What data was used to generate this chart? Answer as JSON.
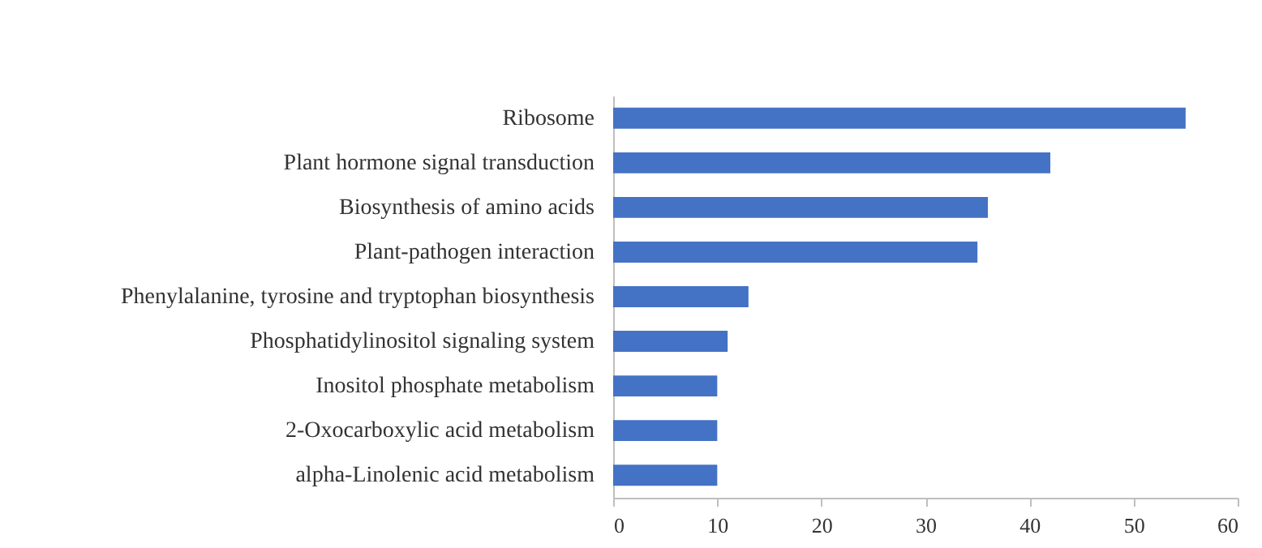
{
  "chart_data": {
    "type": "bar",
    "orientation": "horizontal",
    "categories": [
      "Ribosome",
      "Plant hormone signal transduction",
      "Biosynthesis of amino acids",
      "Plant-pathogen interaction",
      "Phenylalanine, tyrosine and tryptophan biosynthesis",
      "Phosphatidylinositol signaling system",
      "Inositol phosphate metabolism",
      "2-Oxocarboxylic acid metabolism",
      "alpha-Linolenic acid metabolism"
    ],
    "values": [
      55,
      42,
      36,
      35,
      13,
      11,
      10,
      10,
      10
    ],
    "color": "#4472c4",
    "xlim": [
      0,
      60
    ],
    "xticks": [
      0,
      10,
      20,
      30,
      40,
      50,
      60
    ],
    "grid": false
  }
}
